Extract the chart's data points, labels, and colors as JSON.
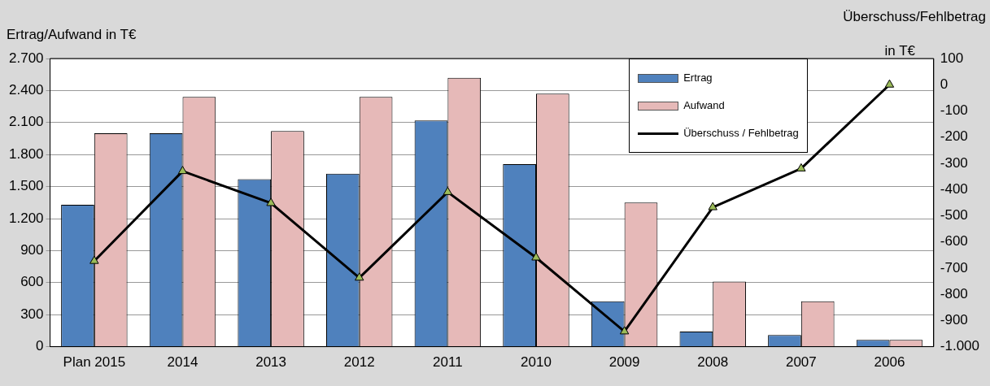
{
  "chart_data": {
    "type": "bar",
    "ylabel": "Ertrag/Aufwand in T€",
    "y2label": "Überschuss/Fehlbetrag in T€",
    "categories": [
      "Plan 2015",
      "2014",
      "2013",
      "2012",
      "2011",
      "2010",
      "2009",
      "2008",
      "2007",
      "2006"
    ],
    "series": [
      {
        "name": "Ertrag",
        "color": "#4f81bd",
        "values": [
          1330,
          2000,
          1570,
          1620,
          2120,
          1710,
          425,
          142,
          110,
          63
        ]
      },
      {
        "name": "Aufwand",
        "color": "#e6b9b8",
        "values": [
          2000,
          2340,
          2020,
          2340,
          2520,
          2370,
          1350,
          610,
          425,
          63
        ]
      },
      {
        "name": "Überschuss / Fehlbetrag",
        "type": "line",
        "axis": "y2",
        "color": "#000000",
        "marker": "triangle",
        "values": [
          -673,
          -330,
          -452,
          -737,
          -410,
          -660,
          -942,
          -468,
          -320,
          0
        ]
      }
    ],
    "ylim": [
      0,
      2700
    ],
    "yticks": [
      0,
      300,
      600,
      900,
      {
        "value": 1200,
        "label": "1.200"
      },
      {
        "value": 1500,
        "label": "1.500"
      },
      {
        "value": 1800,
        "label": "1.800"
      },
      {
        "value": 2100,
        "label": "2.100"
      },
      {
        "value": 2400,
        "label": "2.400"
      },
      {
        "value": 2700,
        "label": "2.700"
      }
    ],
    "y2lim": [
      -1000,
      100
    ],
    "y2ticks": [
      {
        "value": -1000,
        "label": "-1.000"
      },
      -900,
      -800,
      -700,
      -600,
      -500,
      -400,
      -300,
      -200,
      -100,
      0,
      100
    ],
    "grid": "y",
    "legend": "top right"
  }
}
